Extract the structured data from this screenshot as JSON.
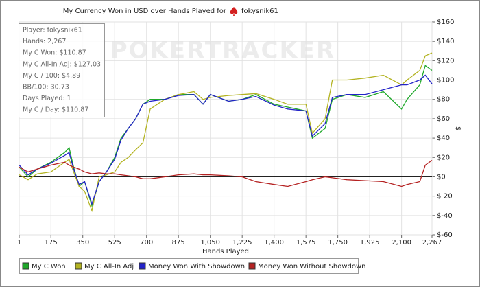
{
  "chart_data": {
    "type": "line",
    "title": "My Currency Won in USD over Hands Played for",
    "player": "fokysnik61",
    "watermark": "POKERTRACKER",
    "xlabel": "Hands Played",
    "ylabel": "$",
    "grid": true,
    "stats": [
      "Player: fokysnik61",
      "Hands: 2,267",
      "My C Won: $110.87",
      "My C All-In Adj: $127.03",
      "My C / 100: $4.89",
      "BB/100: 30.73",
      "Days Played: 1",
      "My C / Day: $110.87"
    ],
    "x": [
      1,
      50,
      100,
      175,
      250,
      275,
      300,
      330,
      360,
      400,
      440,
      480,
      525,
      560,
      600,
      640,
      680,
      720,
      800,
      875,
      960,
      1010,
      1050,
      1150,
      1225,
      1300,
      1400,
      1475,
      1575,
      1610,
      1680,
      1720,
      1800,
      1900,
      2000,
      2100,
      2130,
      2200,
      2230,
      2267
    ],
    "xlim": [
      1,
      2267
    ],
    "xticks": [
      1,
      175,
      350,
      525,
      700,
      875,
      {
        "value": 1050,
        "label": "1,050"
      },
      {
        "value": 1225,
        "label": "1,225"
      },
      {
        "value": 1400,
        "label": "1,400"
      },
      {
        "value": 1575,
        "label": "1,575"
      },
      {
        "value": 1750,
        "label": "1,750"
      },
      {
        "value": 1925,
        "label": "1,925"
      },
      {
        "value": 2100,
        "label": "2,100"
      },
      {
        "value": 2267,
        "label": "2,267"
      }
    ],
    "ylim": [
      -60,
      160
    ],
    "yticks": [
      {
        "value": -60,
        "label": "$-60"
      },
      {
        "value": -40,
        "label": "$-40"
      },
      {
        "value": -20,
        "label": "$-20"
      },
      {
        "value": 0,
        "label": "$0"
      },
      {
        "value": 20,
        "label": "$20"
      },
      {
        "value": 40,
        "label": "$40"
      },
      {
        "value": 60,
        "label": "$60"
      },
      {
        "value": 80,
        "label": "$80"
      },
      {
        "value": 100,
        "label": "$100"
      },
      {
        "value": 120,
        "label": "$120"
      },
      {
        "value": 140,
        "label": "$140"
      },
      {
        "value": 160,
        "label": "$160"
      }
    ],
    "series": [
      {
        "name": "My C Won",
        "color": "#1fa82a",
        "values": [
          10,
          0,
          8,
          15,
          25,
          30,
          10,
          -10,
          -5,
          -30,
          -5,
          5,
          20,
          40,
          50,
          60,
          75,
          80,
          80,
          85,
          85,
          75,
          85,
          78,
          80,
          85,
          75,
          72,
          68,
          40,
          50,
          80,
          85,
          82,
          88,
          70,
          80,
          95,
          115,
          110
        ]
      },
      {
        "name": "My C All-In Adj",
        "color": "#b3b321",
        "values": [
          2,
          -3,
          3,
          5,
          15,
          18,
          5,
          -10,
          -15,
          -35,
          0,
          2,
          5,
          15,
          20,
          28,
          35,
          70,
          80,
          85,
          88,
          80,
          82,
          84,
          85,
          86,
          80,
          75,
          75,
          45,
          60,
          100,
          100,
          102,
          105,
          95,
          100,
          110,
          125,
          128
        ]
      },
      {
        "name": "Money Won With Showdown",
        "color": "#2323c8",
        "values": [
          12,
          2,
          8,
          14,
          22,
          25,
          8,
          -8,
          -5,
          -28,
          -5,
          5,
          18,
          38,
          50,
          60,
          75,
          78,
          80,
          84,
          85,
          75,
          85,
          78,
          80,
          83,
          74,
          70,
          68,
          42,
          55,
          82,
          85,
          85,
          90,
          95,
          95,
          100,
          105,
          96
        ]
      },
      {
        "name": "Money Won Without Showdown",
        "color": "#b52222",
        "values": [
          10,
          5,
          8,
          12,
          15,
          12,
          10,
          8,
          5,
          3,
          4,
          3,
          3,
          2,
          1,
          0,
          -2,
          -2,
          0,
          2,
          3,
          2,
          2,
          1,
          0,
          -5,
          -8,
          -10,
          -5,
          -3,
          0,
          -1,
          -3,
          -4,
          -5,
          -10,
          -8,
          -5,
          12,
          17
        ]
      }
    ]
  }
}
